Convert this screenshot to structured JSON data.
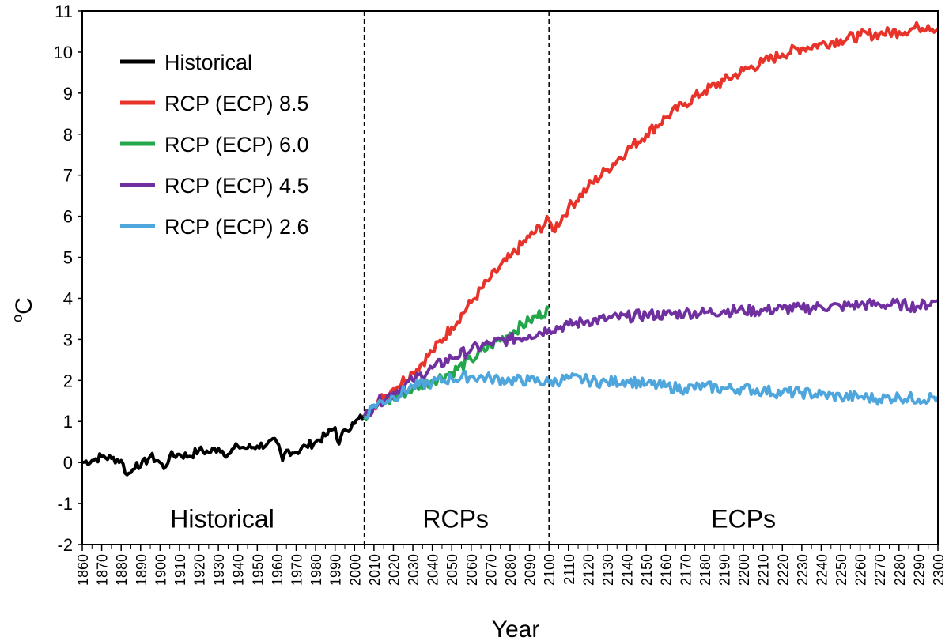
{
  "chart_data": {
    "type": "line",
    "xlabel": "Year",
    "ylabel_base": "o",
    "ylabel_unit": "C",
    "xlim": [
      1860,
      2300
    ],
    "ylim": [
      -2,
      11
    ],
    "y_ticks": [
      "-2",
      "-1",
      "0",
      "1",
      "2",
      "3",
      "4",
      "5",
      "6",
      "7",
      "8",
      "9",
      "10",
      "11"
    ],
    "x_ticks": [
      "1860",
      "1870",
      "1880",
      "1890",
      "1900",
      "1910",
      "1920",
      "1930",
      "1940",
      "1950",
      "1960",
      "1970",
      "1980",
      "1990",
      "2000",
      "2010",
      "2020",
      "2030",
      "2040",
      "2050",
      "2060",
      "2070",
      "2080",
      "2090",
      "2100",
      "2110",
      "2120",
      "2130",
      "2140",
      "2150",
      "2160",
      "2170",
      "2180",
      "2190",
      "2200",
      "2210",
      "2220",
      "2230",
      "2240",
      "2250",
      "2260",
      "2270",
      "2280",
      "2290",
      "2300"
    ],
    "grid": false,
    "legend_position": "top-left",
    "dividers": [
      2005,
      2100
    ],
    "period_labels": [
      {
        "text": "Historical",
        "x": 1932
      },
      {
        "text": "RCPs",
        "x": 2052
      },
      {
        "text": "ECPs",
        "x": 2200
      }
    ],
    "period_label_y": -1.35,
    "series": [
      {
        "name": "Historical",
        "color": "#000000",
        "x": [
          1860,
          1865,
          1870,
          1875,
          1880,
          1883,
          1885,
          1888,
          1890,
          1895,
          1900,
          1902,
          1905,
          1910,
          1915,
          1920,
          1925,
          1930,
          1935,
          1940,
          1945,
          1950,
          1955,
          1960,
          1963,
          1965,
          1970,
          1975,
          1980,
          1985,
          1990,
          1992,
          1995,
          2000,
          2005
        ],
        "y": [
          0.0,
          0.05,
          0.15,
          0.1,
          0.05,
          -0.3,
          -0.25,
          0.0,
          -0.1,
          0.15,
          0.0,
          -0.15,
          0.15,
          0.2,
          0.15,
          0.3,
          0.25,
          0.35,
          0.2,
          0.4,
          0.35,
          0.4,
          0.45,
          0.5,
          0.05,
          0.3,
          0.25,
          0.4,
          0.5,
          0.65,
          0.85,
          0.45,
          0.8,
          0.95,
          1.15
        ]
      },
      {
        "name": "RCP (ECP) 8.5",
        "color": "#e8332a",
        "x": [
          2005,
          2010,
          2020,
          2030,
          2040,
          2050,
          2060,
          2070,
          2080,
          2090,
          2100,
          2102,
          2110,
          2120,
          2130,
          2140,
          2150,
          2160,
          2170,
          2180,
          2190,
          2200,
          2210,
          2220,
          2230,
          2240,
          2250,
          2260,
          2270,
          2280,
          2290,
          2295,
          2300
        ],
        "y": [
          1.1,
          1.4,
          1.8,
          2.2,
          2.7,
          3.3,
          3.9,
          4.5,
          5.0,
          5.5,
          5.9,
          5.65,
          6.2,
          6.7,
          7.15,
          7.6,
          8.0,
          8.4,
          8.75,
          9.05,
          9.3,
          9.55,
          9.75,
          9.95,
          10.1,
          10.2,
          10.3,
          10.4,
          10.45,
          10.5,
          10.6,
          10.65,
          10.55
        ]
      },
      {
        "name": "RCP (ECP) 6.0",
        "color": "#22a84b",
        "x": [
          2005,
          2010,
          2020,
          2030,
          2040,
          2050,
          2060,
          2070,
          2080,
          2090,
          2100
        ],
        "y": [
          1.1,
          1.35,
          1.55,
          1.8,
          2.0,
          2.2,
          2.5,
          2.85,
          3.15,
          3.45,
          3.75
        ]
      },
      {
        "name": "RCP (ECP) 4.5",
        "color": "#7030a0",
        "x": [
          2005,
          2010,
          2020,
          2030,
          2040,
          2050,
          2060,
          2070,
          2080,
          2090,
          2100,
          2110,
          2120,
          2130,
          2140,
          2150,
          2160,
          2170,
          2180,
          2190,
          2200,
          2210,
          2220,
          2230,
          2240,
          2250,
          2260,
          2270,
          2280,
          2290,
          2300
        ],
        "y": [
          1.1,
          1.4,
          1.7,
          2.0,
          2.3,
          2.55,
          2.75,
          2.9,
          3.0,
          3.1,
          3.25,
          3.35,
          3.45,
          3.5,
          3.55,
          3.6,
          3.6,
          3.65,
          3.65,
          3.7,
          3.7,
          3.7,
          3.75,
          3.75,
          3.8,
          3.8,
          3.85,
          3.85,
          3.85,
          3.8,
          3.95
        ]
      },
      {
        "name": "RCP (ECP) 2.6",
        "color": "#4ea6dc",
        "x": [
          2005,
          2010,
          2020,
          2030,
          2040,
          2050,
          2060,
          2070,
          2080,
          2090,
          2100,
          2110,
          2120,
          2130,
          2140,
          2150,
          2160,
          2170,
          2180,
          2190,
          2200,
          2210,
          2220,
          2230,
          2240,
          2250,
          2260,
          2270,
          2280,
          2290,
          2300
        ],
        "y": [
          1.1,
          1.4,
          1.6,
          1.85,
          1.95,
          2.05,
          2.1,
          2.05,
          2.0,
          2.0,
          1.95,
          2.05,
          2.0,
          1.95,
          2.0,
          1.9,
          1.85,
          1.8,
          1.85,
          1.8,
          1.8,
          1.75,
          1.7,
          1.7,
          1.65,
          1.6,
          1.6,
          1.55,
          1.6,
          1.55,
          1.6
        ]
      }
    ]
  }
}
